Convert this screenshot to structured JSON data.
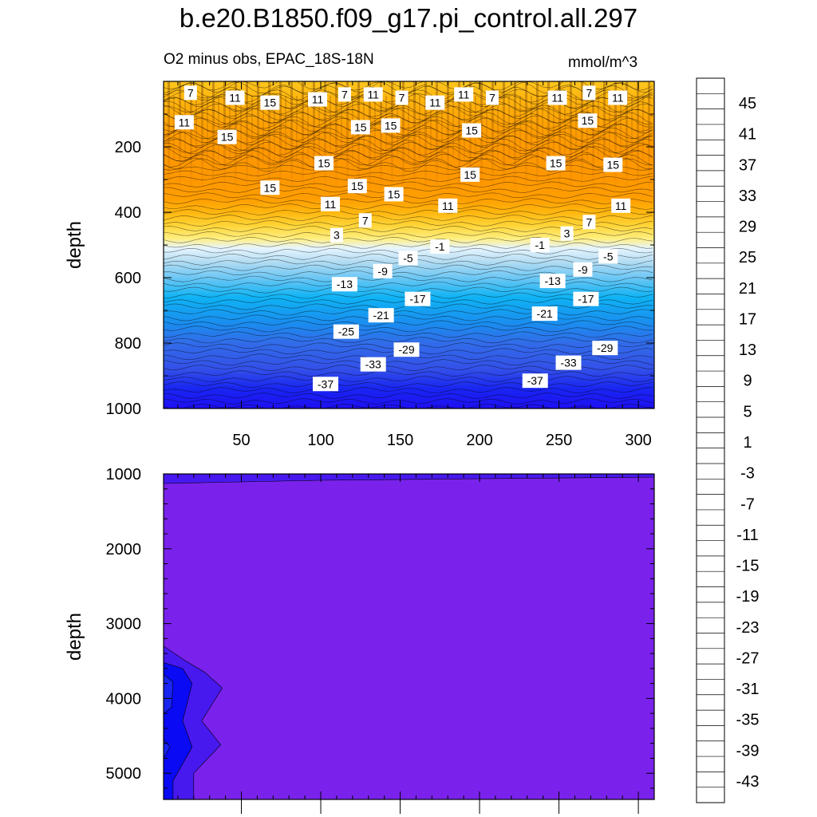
{
  "title": "b.e20.B1850.f09_g17.pi_control.all.297",
  "subtitle": "O2 minus obs, EPAC_18S-18N",
  "units": "mmol/m^3",
  "chart_data": [
    {
      "type": "heatmap",
      "panel": "upper",
      "ylabel": "depth",
      "xlabel": "",
      "y_reversed": true,
      "xlim": [
        1,
        310
      ],
      "ylim": [
        0,
        1000
      ],
      "x_ticks": [
        50,
        100,
        150,
        200,
        250,
        300
      ],
      "y_ticks": [
        200,
        400,
        600,
        800,
        1000
      ],
      "depth_profile": [
        {
          "depth": 0,
          "value": 9
        },
        {
          "depth": 50,
          "value": 11
        },
        {
          "depth": 150,
          "value": 14
        },
        {
          "depth": 220,
          "value": 15
        },
        {
          "depth": 300,
          "value": 15
        },
        {
          "depth": 360,
          "value": 14
        },
        {
          "depth": 400,
          "value": 11
        },
        {
          "depth": 440,
          "value": 7
        },
        {
          "depth": 480,
          "value": 3
        },
        {
          "depth": 510,
          "value": -1
        },
        {
          "depth": 550,
          "value": -5
        },
        {
          "depth": 600,
          "value": -11
        },
        {
          "depth": 660,
          "value": -17
        },
        {
          "depth": 740,
          "value": -23
        },
        {
          "depth": 800,
          "value": -29
        },
        {
          "depth": 880,
          "value": -33
        },
        {
          "depth": 940,
          "value": -37
        },
        {
          "depth": 1000,
          "value": -41
        }
      ],
      "contour_labels": [
        {
          "x": 18,
          "depth": 35,
          "text": "7"
        },
        {
          "x": 46,
          "depth": 50,
          "text": "11"
        },
        {
          "x": 68,
          "depth": 65,
          "text": "15"
        },
        {
          "x": 98,
          "depth": 55,
          "text": "11"
        },
        {
          "x": 115,
          "depth": 40,
          "text": "7"
        },
        {
          "x": 133,
          "depth": 40,
          "text": "11"
        },
        {
          "x": 151,
          "depth": 50,
          "text": "7"
        },
        {
          "x": 172,
          "depth": 65,
          "text": "11"
        },
        {
          "x": 190,
          "depth": 40,
          "text": "11"
        },
        {
          "x": 208,
          "depth": 50,
          "text": "7"
        },
        {
          "x": 249,
          "depth": 50,
          "text": "11"
        },
        {
          "x": 269,
          "depth": 35,
          "text": "7"
        },
        {
          "x": 287,
          "depth": 50,
          "text": "11"
        },
        {
          "x": 14,
          "depth": 125,
          "text": "11"
        },
        {
          "x": 41,
          "depth": 170,
          "text": "15"
        },
        {
          "x": 125,
          "depth": 140,
          "text": "15"
        },
        {
          "x": 144,
          "depth": 135,
          "text": "15"
        },
        {
          "x": 195,
          "depth": 150,
          "text": "15"
        },
        {
          "x": 268,
          "depth": 120,
          "text": "15"
        },
        {
          "x": 102,
          "depth": 250,
          "text": "15"
        },
        {
          "x": 248,
          "depth": 250,
          "text": "15"
        },
        {
          "x": 284,
          "depth": 255,
          "text": "15"
        },
        {
          "x": 194,
          "depth": 285,
          "text": "15"
        },
        {
          "x": 68,
          "depth": 325,
          "text": "15"
        },
        {
          "x": 123,
          "depth": 320,
          "text": "15"
        },
        {
          "x": 146,
          "depth": 345,
          "text": "15"
        },
        {
          "x": 106,
          "depth": 375,
          "text": "11"
        },
        {
          "x": 180,
          "depth": 380,
          "text": "11"
        },
        {
          "x": 289,
          "depth": 380,
          "text": "11"
        },
        {
          "x": 128,
          "depth": 425,
          "text": "7"
        },
        {
          "x": 269,
          "depth": 430,
          "text": "7"
        },
        {
          "x": 110,
          "depth": 470,
          "text": "3"
        },
        {
          "x": 255,
          "depth": 465,
          "text": "3"
        },
        {
          "x": 175,
          "depth": 505,
          "text": "-1"
        },
        {
          "x": 238,
          "depth": 500,
          "text": "-1"
        },
        {
          "x": 155,
          "depth": 540,
          "text": "-5"
        },
        {
          "x": 281,
          "depth": 535,
          "text": "-5"
        },
        {
          "x": 139,
          "depth": 580,
          "text": "-9"
        },
        {
          "x": 265,
          "depth": 575,
          "text": "-9"
        },
        {
          "x": 115,
          "depth": 620,
          "text": "-13"
        },
        {
          "x": 246,
          "depth": 610,
          "text": "-13"
        },
        {
          "x": 161,
          "depth": 665,
          "text": "-17"
        },
        {
          "x": 267,
          "depth": 665,
          "text": "-17"
        },
        {
          "x": 138,
          "depth": 715,
          "text": "-21"
        },
        {
          "x": 241,
          "depth": 710,
          "text": "-21"
        },
        {
          "x": 116,
          "depth": 765,
          "text": "-25"
        },
        {
          "x": 154,
          "depth": 820,
          "text": "-29"
        },
        {
          "x": 279,
          "depth": 815,
          "text": "-29"
        },
        {
          "x": 133,
          "depth": 865,
          "text": "-33"
        },
        {
          "x": 256,
          "depth": 860,
          "text": "-33"
        },
        {
          "x": 103,
          "depth": 925,
          "text": "-37"
        },
        {
          "x": 235,
          "depth": 915,
          "text": "-37"
        }
      ]
    },
    {
      "type": "heatmap",
      "panel": "lower",
      "ylabel": "depth",
      "xlabel": "",
      "y_reversed": true,
      "xlim": [
        1,
        310
      ],
      "ylim": [
        1000,
        5350
      ],
      "y_ticks": [
        1000,
        2000,
        3000,
        4000,
        5000
      ],
      "dominant_value": -46,
      "deep_anomaly_x_range": [
        1,
        38
      ],
      "deep_anomaly_depth_range": [
        3300,
        5350
      ],
      "deep_anomaly_min": -43
    }
  ],
  "colorbar": {
    "levels": [
      45,
      41,
      37,
      33,
      29,
      25,
      21,
      17,
      13,
      9,
      5,
      1,
      -3,
      -7,
      -11,
      -15,
      -19,
      -23,
      -27,
      -31,
      -35,
      -39,
      -43
    ],
    "min_level": -45,
    "max_level": 47,
    "step": 2,
    "stops": [
      {
        "value": 47,
        "color": "#fdb6b6"
      },
      {
        "value": 44,
        "color": "#f48282"
      },
      {
        "value": 41,
        "color": "#e65050"
      },
      {
        "value": 38,
        "color": "#dc2828"
      },
      {
        "value": 35,
        "color": "#e00000"
      },
      {
        "value": 32,
        "color": "#ff1414"
      },
      {
        "value": 29,
        "color": "#ff2d00"
      },
      {
        "value": 25,
        "color": "#ff4600"
      },
      {
        "value": 21,
        "color": "#ff6a00"
      },
      {
        "value": 17,
        "color": "#ff8a00"
      },
      {
        "value": 13,
        "color": "#ffa500"
      },
      {
        "value": 9,
        "color": "#ffc61e"
      },
      {
        "value": 5,
        "color": "#ffe14d"
      },
      {
        "value": 2,
        "color": "#fff596"
      },
      {
        "value": 0,
        "color": "#ffffc8"
      },
      {
        "value": -1,
        "color": "#e6f5ff"
      },
      {
        "value": -4,
        "color": "#bfe0f2"
      },
      {
        "value": -8,
        "color": "#97d2f0"
      },
      {
        "value": -12,
        "color": "#5fc3f5"
      },
      {
        "value": -16,
        "color": "#0fb9f5"
      },
      {
        "value": -20,
        "color": "#0fa0f0"
      },
      {
        "value": -24,
        "color": "#1e87ef"
      },
      {
        "value": -28,
        "color": "#2f72ea"
      },
      {
        "value": -32,
        "color": "#3a5be5"
      },
      {
        "value": -36,
        "color": "#1e2ef0"
      },
      {
        "value": -40,
        "color": "#0a0af5"
      },
      {
        "value": -43,
        "color": "#4719ee"
      },
      {
        "value": -46,
        "color": "#7a22ec"
      }
    ]
  }
}
